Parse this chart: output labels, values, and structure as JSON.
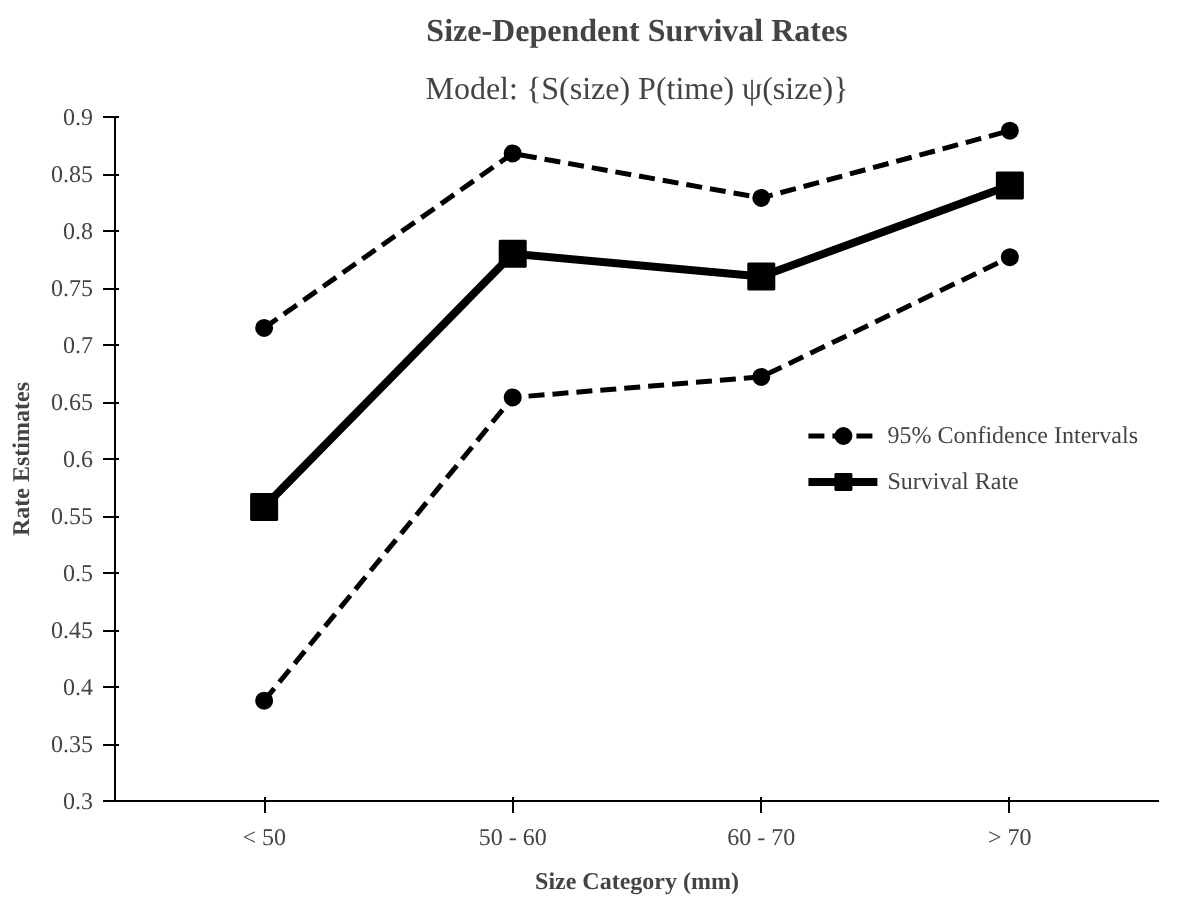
{
  "chart_data": {
    "type": "line",
    "title": "Size-Dependent Survival Rates",
    "subtitle": "Model: {S(size) P(time) ψ(size)}",
    "xlabel": "Size Category (mm)",
    "ylabel": "Rate Estimates",
    "categories": [
      "< 50",
      "50 - 60",
      "60 - 70",
      "> 70"
    ],
    "series": [
      {
        "name": "95% Confidence Intervals",
        "color": "#000000",
        "marker": "circle",
        "line_style": "dashed",
        "values": [
          0.715,
          0.868,
          0.829,
          0.888
        ]
      },
      {
        "color": "#000000",
        "marker": "circle",
        "line_style": "dashed",
        "values": [
          0.388,
          0.654,
          0.672,
          0.777
        ]
      },
      {
        "name": "Survival Rate",
        "color": "#000000",
        "marker": "square",
        "line_style": "solid",
        "values": [
          0.558,
          0.78,
          0.76,
          0.84
        ]
      }
    ],
    "ylim": [
      0.3,
      0.9
    ],
    "yticks": [
      0.3,
      0.35,
      0.4,
      0.45,
      0.5,
      0.55,
      0.6,
      0.65,
      0.7,
      0.75,
      0.8,
      0.85,
      0.9
    ],
    "grid": false,
    "legend": "right"
  }
}
